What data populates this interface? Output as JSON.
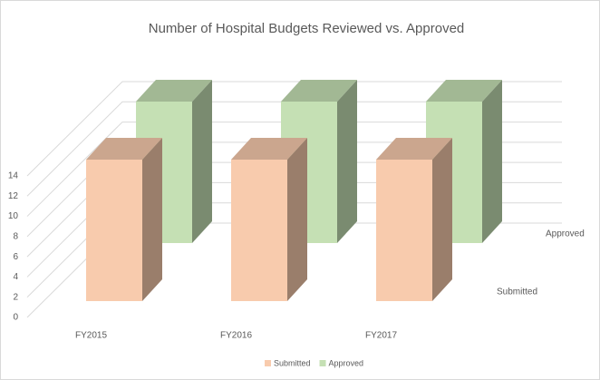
{
  "chart_data": {
    "type": "bar3d",
    "title": "Number of Hospital Budgets Reviewed vs. Approved",
    "categories": [
      "FY2015",
      "FY2016",
      "FY2017"
    ],
    "series": [
      {
        "name": "Submitted",
        "color": "#f8cbad",
        "values": [
          14,
          14,
          14
        ]
      },
      {
        "name": "Approved",
        "color": "#c5e0b4",
        "values": [
          14,
          14,
          14
        ]
      }
    ],
    "ylim": [
      0,
      14
    ],
    "yticks": [
      0,
      2,
      4,
      6,
      8,
      10,
      12,
      14
    ],
    "grid": true,
    "legend": "bottom"
  }
}
